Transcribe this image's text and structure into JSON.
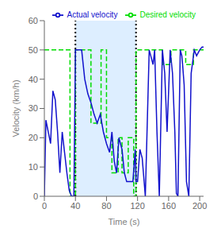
{
  "chart_data": {
    "type": "line",
    "title": "",
    "xlabel": "Time (s)",
    "ylabel": "Velocity (km/h)",
    "xlim": [
      0,
      205
    ],
    "ylim": [
      0,
      60
    ],
    "xticks": [
      0,
      40,
      80,
      120,
      160,
      200
    ],
    "yticks": [
      0,
      10,
      20,
      30,
      40,
      50,
      60
    ],
    "grid": false,
    "legend": "upper right",
    "shade": {
      "x": [
        40,
        118
      ],
      "color": "#ddeeff"
    },
    "vlines": {
      "x": [
        40,
        118
      ],
      "color": "black",
      "line_style": "dotted"
    },
    "series": [
      {
        "name": "Desired velocity",
        "color": "#00dd00",
        "line_style": "dashed",
        "x": [
          0,
          33,
          33,
          40,
          40,
          60,
          60,
          73,
          73,
          80,
          80,
          87,
          87,
          95,
          95,
          100,
          100,
          108,
          108,
          115,
          115,
          118,
          118,
          152,
          152,
          163,
          163,
          182,
          182,
          192,
          192,
          205
        ],
        "values": [
          50,
          50,
          0,
          0,
          50,
          50,
          25,
          25,
          50,
          50,
          20,
          20,
          8,
          8,
          20,
          20,
          8,
          8,
          20,
          20,
          0,
          0,
          50,
          50,
          45,
          45,
          50,
          50,
          45,
          45,
          50,
          50
        ]
      },
      {
        "name": "Actual velocity",
        "color": "#1111cc",
        "line_style": "solid",
        "x": [
          0,
          2,
          5,
          8,
          11,
          14,
          17,
          20,
          23,
          26,
          29,
          32,
          35,
          38,
          40,
          42,
          45,
          48,
          52,
          56,
          60,
          64,
          68,
          72,
          76,
          80,
          84,
          87,
          90,
          93,
          96,
          100,
          103,
          106,
          110,
          114,
          117,
          118,
          120,
          123,
          126,
          130,
          135,
          140,
          142,
          145,
          148,
          152,
          155,
          158,
          162,
          165,
          168,
          170,
          172,
          175,
          177,
          178,
          180,
          183,
          186,
          189,
          193,
          196,
          200,
          203,
          205
        ],
        "values": [
          0,
          26,
          22,
          18,
          36,
          33,
          22,
          8,
          22,
          15,
          8,
          2,
          0,
          0,
          50,
          50,
          50,
          50,
          40,
          35,
          32,
          28,
          25,
          28,
          22,
          18,
          15,
          22,
          12,
          8,
          20,
          16,
          8,
          5,
          5,
          5,
          16,
          5,
          5,
          16,
          13,
          0,
          50,
          45,
          50,
          22,
          0,
          50,
          42,
          22,
          50,
          42,
          22,
          1,
          0,
          50,
          48,
          45,
          38,
          5,
          0,
          42,
          50,
          48,
          50,
          51,
          51
        ]
      }
    ]
  }
}
